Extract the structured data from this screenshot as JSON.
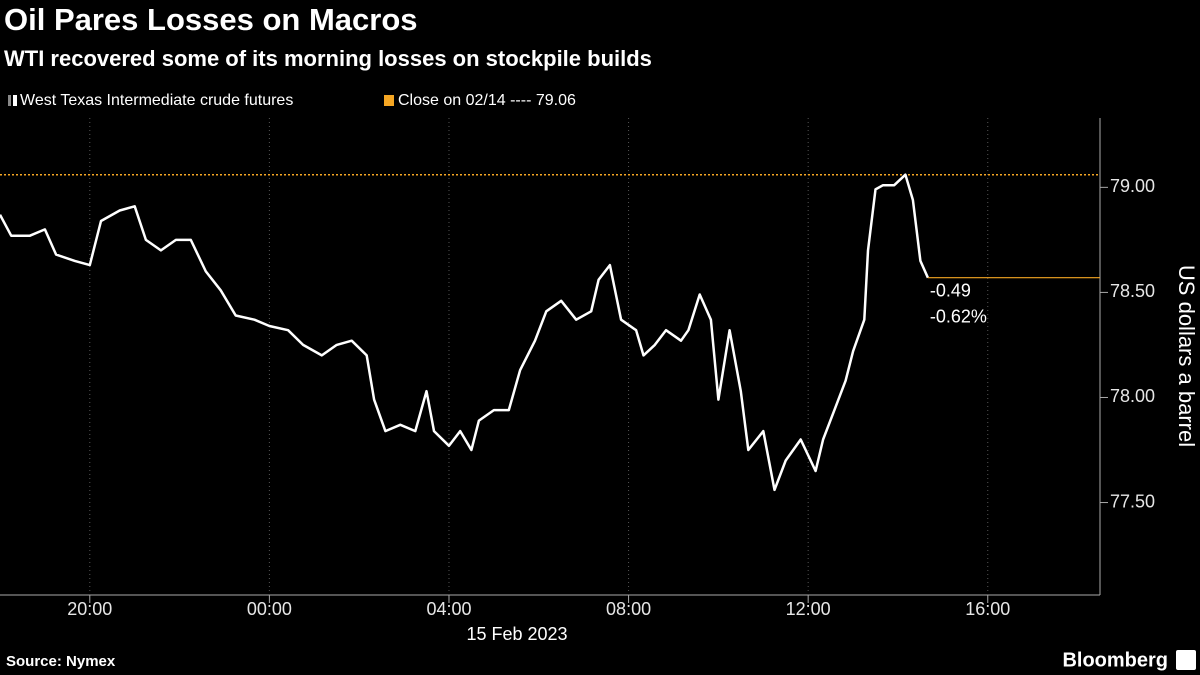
{
  "chart_data": {
    "type": "line",
    "title": "Oil Pares Losses on Macros",
    "subtitle": "WTI recovered some of its morning losses on stockpile builds",
    "y_label": "US dollars a barrel",
    "x_date_label": "15 Feb 2023",
    "source": "Source: Nymex",
    "brand": "Bloomberg",
    "series": [
      {
        "name": "West Texas Intermediate crude futures",
        "color": "#ffffff",
        "x": [
          "2023-02-14T18:00",
          "2023-02-14T18:15",
          "2023-02-14T18:40",
          "2023-02-14T19:00",
          "2023-02-14T19:15",
          "2023-02-14T19:40",
          "2023-02-14T20:00",
          "2023-02-14T20:15",
          "2023-02-14T20:40",
          "2023-02-14T21:00",
          "2023-02-14T21:15",
          "2023-02-14T21:35",
          "2023-02-14T21:55",
          "2023-02-14T22:15",
          "2023-02-14T22:35",
          "2023-02-14T22:55",
          "2023-02-14T23:15",
          "2023-02-14T23:40",
          "2023-02-15T00:00",
          "2023-02-15T00:25",
          "2023-02-15T00:45",
          "2023-02-15T01:10",
          "2023-02-15T01:30",
          "2023-02-15T01:50",
          "2023-02-15T02:10",
          "2023-02-15T02:20",
          "2023-02-15T02:35",
          "2023-02-15T02:55",
          "2023-02-15T03:15",
          "2023-02-15T03:30",
          "2023-02-15T03:40",
          "2023-02-15T04:00",
          "2023-02-15T04:15",
          "2023-02-15T04:30",
          "2023-02-15T04:40",
          "2023-02-15T05:00",
          "2023-02-15T05:20",
          "2023-02-15T05:35",
          "2023-02-15T05:55",
          "2023-02-15T06:10",
          "2023-02-15T06:30",
          "2023-02-15T06:50",
          "2023-02-15T07:10",
          "2023-02-15T07:20",
          "2023-02-15T07:35",
          "2023-02-15T07:50",
          "2023-02-15T08:10",
          "2023-02-15T08:20",
          "2023-02-15T08:35",
          "2023-02-15T08:50",
          "2023-02-15T09:10",
          "2023-02-15T09:20",
          "2023-02-15T09:35",
          "2023-02-15T09:50",
          "2023-02-15T10:00",
          "2023-02-15T10:15",
          "2023-02-15T10:30",
          "2023-02-15T10:40",
          "2023-02-15T11:00",
          "2023-02-15T11:15",
          "2023-02-15T11:30",
          "2023-02-15T11:50",
          "2023-02-15T12:10",
          "2023-02-15T12:20",
          "2023-02-15T12:35",
          "2023-02-15T12:50",
          "2023-02-15T13:00",
          "2023-02-15T13:15",
          "2023-02-15T13:20",
          "2023-02-15T13:30",
          "2023-02-15T13:40",
          "2023-02-15T13:55",
          "2023-02-15T14:10",
          "2023-02-15T14:20",
          "2023-02-15T14:30",
          "2023-02-15T14:40"
        ],
        "values": [
          78.87,
          78.77,
          78.77,
          78.8,
          78.68,
          78.65,
          78.63,
          78.84,
          78.89,
          78.91,
          78.75,
          78.7,
          78.75,
          78.75,
          78.6,
          78.51,
          78.39,
          78.37,
          78.34,
          78.32,
          78.25,
          78.2,
          78.25,
          78.27,
          78.2,
          77.99,
          77.84,
          77.87,
          77.84,
          78.03,
          77.84,
          77.77,
          77.84,
          77.75,
          77.89,
          77.94,
          77.94,
          78.13,
          78.27,
          78.41,
          78.46,
          78.37,
          78.41,
          78.56,
          78.63,
          78.37,
          78.32,
          78.2,
          78.25,
          78.32,
          78.27,
          78.32,
          78.49,
          78.37,
          77.99,
          78.32,
          78.03,
          77.75,
          77.84,
          77.56,
          77.7,
          77.8,
          77.65,
          77.8,
          77.94,
          78.08,
          78.22,
          78.37,
          78.7,
          78.99,
          79.01,
          79.01,
          79.06,
          78.94,
          78.65,
          78.57
        ]
      }
    ],
    "reference": {
      "name": "Close on 02/14 ----",
      "value": 79.06,
      "color": "#f5a623"
    },
    "change": -0.49,
    "change_pct": {
      "value": -0.62,
      "label": "-0.62%"
    },
    "xlim": [
      "2023-02-14T18:00",
      "2023-02-15T18:30"
    ],
    "xticks": [
      {
        "value": "2023-02-14T20:00",
        "label": "20:00"
      },
      {
        "value": "2023-02-15T00:00",
        "label": "00:00"
      },
      {
        "value": "2023-02-15T04:00",
        "label": "04:00"
      },
      {
        "value": "2023-02-15T08:00",
        "label": "08:00"
      },
      {
        "value": "2023-02-15T12:00",
        "label": "12:00"
      },
      {
        "value": "2023-02-15T16:00",
        "label": "16:00"
      }
    ],
    "ylim": [
      77.06,
      79.33
    ],
    "yticks": [
      {
        "value": 77.5,
        "label": "77.50"
      },
      {
        "value": 78,
        "label": "78.00"
      },
      {
        "value": 78.5,
        "label": "78.50"
      },
      {
        "value": 79,
        "label": "79.00"
      }
    ],
    "grid": true
  }
}
